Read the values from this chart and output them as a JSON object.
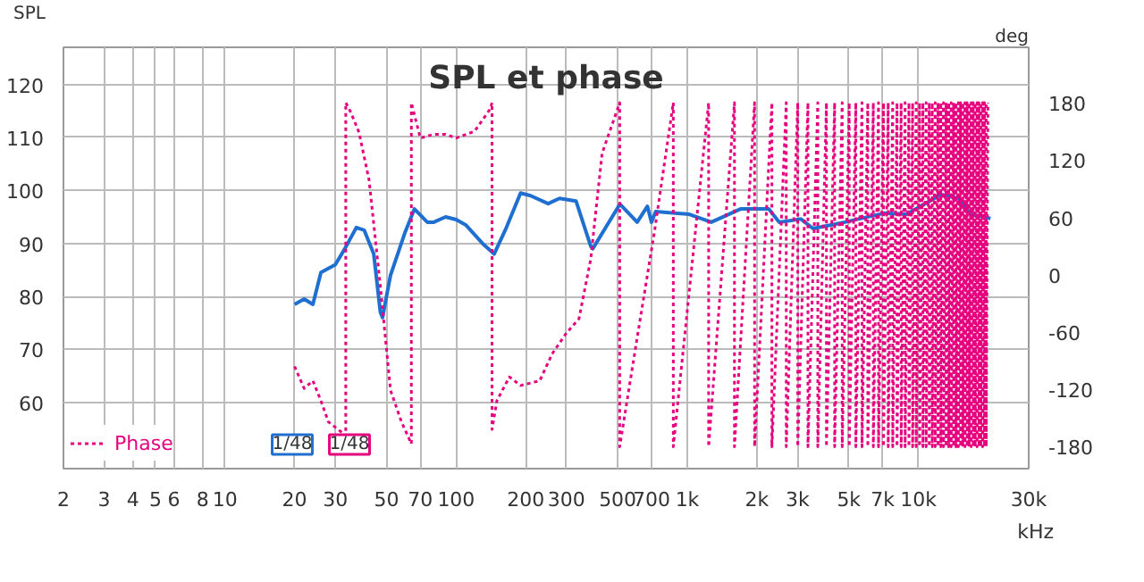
{
  "chart_data": {
    "type": "line",
    "title": "SPL et phase",
    "ylabel": "SPL",
    "y2label": "deg",
    "xlabel": "kHz",
    "xlim": [
      2,
      30000
    ],
    "xticks": [
      2,
      3,
      4,
      5,
      6,
      8,
      10,
      20,
      30,
      50,
      70,
      100,
      200,
      300,
      500,
      700,
      {
        "value": 1000,
        "label": "1k"
      },
      {
        "value": 2000,
        "label": "2k"
      },
      {
        "value": 3000,
        "label": "3k"
      },
      {
        "value": 5000,
        "label": "5k"
      },
      {
        "value": 7000,
        "label": "7k"
      },
      {
        "value": 10000,
        "label": "10k"
      },
      {
        "value": 30000,
        "label": "30k"
      }
    ],
    "ylim": [
      47.5,
      127
    ],
    "yticks": [
      60,
      70,
      80,
      90,
      100,
      110,
      120
    ],
    "y2lim": [
      -203,
      238
    ],
    "y2ticks": [
      -180,
      -120,
      -60,
      0,
      60,
      120,
      180
    ],
    "log": "x",
    "grid": true,
    "legend": "bottom left",
    "annotations": [
      "1/48",
      "1/48"
    ],
    "series": [
      {
        "color": "#1f6fd1",
        "line_style": "solid",
        "x": [
          20,
          22,
          24,
          26,
          30,
          33,
          37,
          40,
          44,
          47,
          48,
          52,
          60,
          66,
          75,
          80,
          90,
          100,
          110,
          130,
          146,
          165,
          190,
          210,
          250,
          280,
          330,
          382,
          390,
          511,
          607,
          672,
          700,
          730,
          1020,
          1270,
          1700,
          2250,
          2500,
          3100,
          3500,
          4800,
          7100,
          8900,
          12500,
          14900,
          16800,
          20500
        ],
        "values": [
          78.5,
          79.5,
          78.5,
          84.5,
          86,
          89,
          93,
          92.5,
          88,
          77,
          76,
          84,
          92,
          96.5,
          94,
          94,
          95,
          94.5,
          93.5,
          90,
          88,
          93,
          99.5,
          99,
          97.5,
          98.5,
          98,
          89.5,
          89,
          97.4,
          94,
          97,
          94,
          96,
          95.5,
          94,
          96.5,
          96.5,
          94,
          94.6,
          92.8,
          94,
          95.7,
          95.5,
          99.2,
          98.5,
          95.5,
          94.7
        ]
      },
      {
        "name": "Phase",
        "color": "#e6007e",
        "axis": "y2",
        "line_style": "dotted",
        "x": [
          20,
          22,
          24,
          26,
          28,
          32,
          33.3,
          33.3,
          35,
          38,
          42,
          47,
          52,
          58,
          64,
          64,
          70,
          80,
          90,
          100,
          120,
          140,
          143,
          143,
          150,
          170,
          190,
          230,
          260,
          300,
          340,
          382,
          428,
          510,
          510,
          607,
          720,
          870,
          870,
          1237,
          1237,
          1600,
          1600,
          1955,
          1955,
          2323,
          2323,
          2680,
          2680,
          3006,
          3006,
          3327,
          3327,
          3670,
          3670,
          4000,
          4000,
          4340,
          4340,
          4680,
          4680,
          5020,
          5020,
          5360,
          5360,
          5700,
          5700,
          6040,
          6040,
          6380,
          6380,
          6720,
          6720,
          7060,
          7060,
          7400,
          7400,
          7740,
          7740,
          8080,
          8080,
          8420,
          8420,
          8760,
          8760,
          9100,
          9100,
          9440,
          9440,
          9780,
          9780,
          10120,
          10120,
          10460,
          10460,
          10800,
          10800,
          11140,
          11140,
          11480,
          11480,
          11820,
          11820,
          12160,
          12160,
          12500,
          12500,
          12840,
          12840,
          13180,
          13180,
          13520,
          13520,
          13860,
          13860,
          14200,
          14200,
          14540,
          14540,
          14880,
          14880,
          15220,
          15220,
          15560,
          15560,
          15900,
          15900,
          16240,
          16240,
          16580,
          16580,
          16920,
          16920,
          17260,
          17260,
          17600,
          17600,
          17940,
          17940,
          18280,
          18280,
          18620,
          18620,
          18960,
          18960,
          19300,
          19300,
          19640,
          19640,
          19980
        ],
        "values": [
          -96,
          -119,
          -111,
          -132,
          -154,
          -165,
          -177,
          180,
          170,
          149,
          99,
          -12,
          -121,
          -154,
          -177,
          180,
          143,
          147,
          147,
          143,
          150,
          173,
          180,
          -162,
          -132,
          -107,
          -116,
          -111,
          -83,
          -61,
          -46,
          16,
          127,
          180,
          -180,
          -66,
          44,
          180,
          -180,
          180,
          -180,
          180,
          -180,
          180,
          -180,
          180,
          -180,
          180,
          -180,
          180,
          -180,
          180,
          -180,
          180,
          -180,
          180,
          -180,
          180,
          -180,
          180,
          -180,
          180,
          -180,
          180,
          -180,
          180,
          -180,
          180,
          -180,
          180,
          -180,
          180,
          -180,
          180,
          -180,
          180,
          -180,
          180,
          -180,
          180,
          -180,
          180,
          -180,
          180,
          -180,
          180,
          -180,
          180,
          -180,
          180,
          -180,
          180,
          -180,
          180,
          -180,
          180,
          -180,
          180,
          -180,
          180,
          -180,
          180,
          -180,
          180,
          -180,
          180,
          -180,
          180,
          -180,
          180,
          -180,
          180,
          -180,
          180,
          -180,
          180,
          -180,
          180,
          -180,
          180,
          -180,
          180,
          -180,
          180,
          -180,
          180,
          -180,
          180,
          -180,
          180,
          -180,
          180,
          -180,
          180,
          -180,
          180,
          -180,
          180,
          -180,
          180,
          -180,
          180,
          -180,
          180,
          -180,
          180,
          -180,
          180,
          -180,
          180
        ]
      }
    ]
  }
}
